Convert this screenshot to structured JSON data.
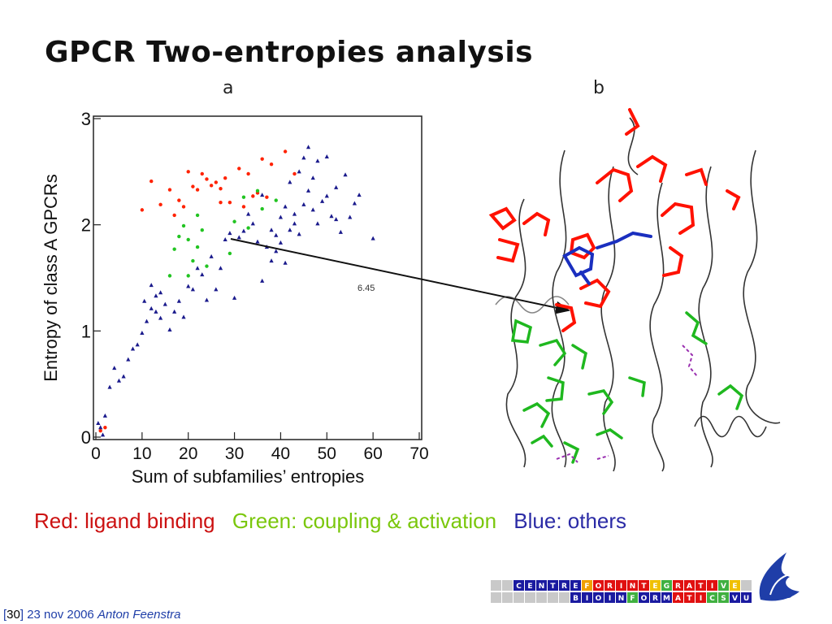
{
  "slide": {
    "title": "GPCR Two-entropies analysis",
    "panel_a": "a",
    "panel_b": "b",
    "arrow_label": "6.45"
  },
  "legend": {
    "red": {
      "text": "Red: ligand binding",
      "color": "#cc1111"
    },
    "green": {
      "text": "Green: coupling & activation",
      "color": "#7ac70c"
    },
    "blue": {
      "text": "Blue: others",
      "color": "#2b2ba6"
    }
  },
  "footer": {
    "bracket_open": "[",
    "page_number": "30",
    "bracket_close": "]",
    "date": "23 nov 2006",
    "author": "Anton Feenstra"
  },
  "logo": {
    "row1": [
      "C",
      "E",
      "N",
      "T",
      "R",
      "E",
      "F",
      "O",
      "R",
      "I",
      "N",
      "T",
      "E",
      "G",
      "R",
      "A",
      "T",
      "I",
      "V",
      "E"
    ],
    "row2": [
      "B",
      "I",
      "O",
      "I",
      "N",
      "F",
      "O",
      "R",
      "M",
      "A",
      "T",
      "I",
      "C",
      "S",
      "V",
      "U"
    ]
  },
  "chart_data": {
    "type": "scatter",
    "xlabel": "Sum of subfamilies’ entropies",
    "ylabel": "Entropy of class A GPCRs",
    "xlim": [
      0,
      70
    ],
    "ylim": [
      0,
      3
    ],
    "xticks": [
      0,
      10,
      20,
      30,
      40,
      50,
      60,
      70
    ],
    "yticks": [
      0,
      1,
      2,
      3
    ],
    "colors": {
      "red": "#ff2200",
      "green": "#22c422",
      "blue": "#1a1a8c"
    },
    "series": [
      {
        "color": "red",
        "points": [
          [
            10,
            2.14
          ],
          [
            12,
            2.41
          ],
          [
            14,
            2.19
          ],
          [
            16,
            2.33
          ],
          [
            17,
            2.09
          ],
          [
            18,
            2.23
          ],
          [
            19,
            2.17
          ],
          [
            20,
            2.5
          ],
          [
            21,
            2.36
          ],
          [
            22,
            2.33
          ],
          [
            23,
            2.48
          ],
          [
            24,
            2.43
          ],
          [
            25,
            2.37
          ],
          [
            26,
            2.4
          ],
          [
            27,
            2.34
          ],
          [
            28,
            2.44
          ],
          [
            29,
            2.21
          ],
          [
            31,
            2.53
          ],
          [
            32,
            2.17
          ],
          [
            33,
            2.48
          ],
          [
            34,
            2.27
          ],
          [
            35,
            2.3
          ],
          [
            36,
            2.62
          ],
          [
            37,
            2.26
          ],
          [
            38,
            2.57
          ],
          [
            41,
            2.69
          ],
          [
            43,
            2.48
          ],
          [
            27,
            2.21
          ],
          [
            1,
            0.06
          ],
          [
            2,
            0.09
          ]
        ]
      },
      {
        "color": "green",
        "points": [
          [
            16,
            1.52
          ],
          [
            17,
            1.77
          ],
          [
            18,
            1.89
          ],
          [
            19,
            1.99
          ],
          [
            20,
            1.86
          ],
          [
            21,
            1.66
          ],
          [
            22,
            1.79
          ],
          [
            23,
            1.95
          ],
          [
            24,
            1.61
          ],
          [
            29,
            1.73
          ],
          [
            30,
            2.03
          ],
          [
            32,
            2.26
          ],
          [
            33,
            1.97
          ],
          [
            35,
            2.32
          ],
          [
            36,
            2.15
          ],
          [
            39,
            2.23
          ],
          [
            20,
            1.52
          ],
          [
            22,
            2.09
          ]
        ]
      },
      {
        "color": "blue",
        "points": [
          [
            0.5,
            0.13
          ],
          [
            1,
            0.09
          ],
          [
            1.5,
            0.02
          ],
          [
            2,
            0.2
          ],
          [
            3,
            0.47
          ],
          [
            4,
            0.65
          ],
          [
            5,
            0.53
          ],
          [
            6,
            0.57
          ],
          [
            7,
            0.73
          ],
          [
            8,
            0.83
          ],
          [
            9,
            0.87
          ],
          [
            10,
            0.98
          ],
          [
            10.5,
            1.28
          ],
          [
            11,
            1.09
          ],
          [
            12,
            1.21
          ],
          [
            12,
            1.43
          ],
          [
            13,
            1.33
          ],
          [
            13,
            1.18
          ],
          [
            14,
            1.12
          ],
          [
            14,
            1.36
          ],
          [
            15,
            1.25
          ],
          [
            16,
            1.01
          ],
          [
            17,
            1.18
          ],
          [
            18,
            1.28
          ],
          [
            19,
            1.13
          ],
          [
            20,
            1.42
          ],
          [
            21,
            1.39
          ],
          [
            22,
            1.59
          ],
          [
            23,
            1.53
          ],
          [
            24,
            1.29
          ],
          [
            25,
            1.7
          ],
          [
            26,
            1.39
          ],
          [
            27,
            1.59
          ],
          [
            28,
            1.86
          ],
          [
            29,
            1.92
          ],
          [
            30,
            1.31
          ],
          [
            31,
            1.88
          ],
          [
            32,
            1.94
          ],
          [
            33,
            2.1
          ],
          [
            34,
            2.01
          ],
          [
            35,
            1.84
          ],
          [
            36,
            2.28
          ],
          [
            37,
            1.79
          ],
          [
            38,
            1.95
          ],
          [
            39,
            1.9
          ],
          [
            40,
            2.07
          ],
          [
            41,
            2.17
          ],
          [
            42,
            2.4
          ],
          [
            43,
            2.1
          ],
          [
            44,
            2.5
          ],
          [
            45,
            2.63
          ],
          [
            46,
            2.73
          ],
          [
            47,
            2.44
          ],
          [
            48,
            2.6
          ],
          [
            49,
            2.22
          ],
          [
            50,
            2.64
          ],
          [
            51,
            2.08
          ],
          [
            52,
            2.35
          ],
          [
            53,
            1.93
          ],
          [
            55,
            2.07
          ],
          [
            57,
            2.28
          ],
          [
            60,
            1.87
          ],
          [
            43,
            2.01
          ],
          [
            45,
            2.19
          ],
          [
            47,
            2.14
          ],
          [
            38,
            1.66
          ],
          [
            40,
            1.83
          ],
          [
            42,
            1.95
          ],
          [
            44,
            1.91
          ],
          [
            36,
            1.47
          ],
          [
            39,
            1.75
          ],
          [
            41,
            1.64
          ],
          [
            46,
            2.32
          ],
          [
            48,
            2.01
          ],
          [
            50,
            2.27
          ],
          [
            52,
            2.05
          ],
          [
            54,
            2.47
          ],
          [
            56,
            2.2
          ]
        ]
      }
    ]
  }
}
